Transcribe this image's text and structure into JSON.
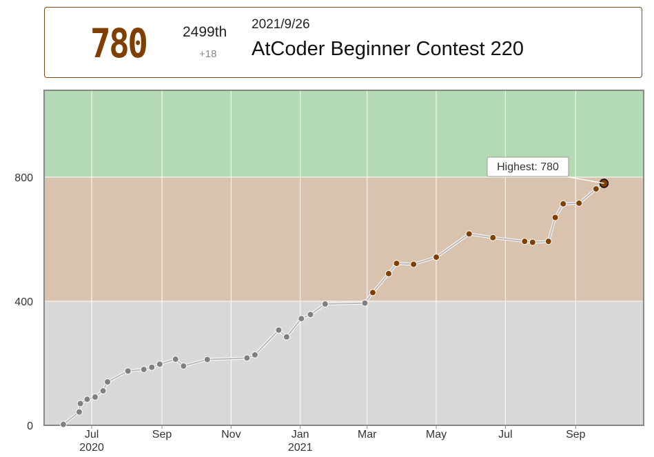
{
  "status": {
    "rating": "780",
    "place": "2499th",
    "diff": "+18",
    "date": "2021/9/26",
    "contest": "AtCoder Beginner Contest 220"
  },
  "colors": {
    "gray_band": "#d8d8d8",
    "brown_band": "#d9c2ae",
    "green_band": "#b4dab4",
    "gray_point": "#808080",
    "brown_point": "#804000",
    "line": "#b8b8b8",
    "frame": "#888888",
    "box_border": "#7a4a14",
    "rating_text": "#7f3f00"
  },
  "chart_data": {
    "type": "line",
    "title": "",
    "xlabel": "",
    "ylabel": "",
    "ylim": [
      0,
      1080
    ],
    "xlim": [
      "2020-05-20",
      "2021-10-31"
    ],
    "grid": true,
    "yticks": [
      "0",
      "400",
      "800"
    ],
    "xticks": [
      {
        "date": "2020-07-01",
        "label": "Jul",
        "year": "2020"
      },
      {
        "date": "2020-09-01",
        "label": "Sep",
        "year": ""
      },
      {
        "date": "2020-11-01",
        "label": "Nov",
        "year": ""
      },
      {
        "date": "2021-01-01",
        "label": "Jan",
        "year": "2021"
      },
      {
        "date": "2021-03-01",
        "label": "Mar",
        "year": ""
      },
      {
        "date": "2021-05-01",
        "label": "May",
        "year": ""
      },
      {
        "date": "2021-07-01",
        "label": "Jul",
        "year": ""
      },
      {
        "date": "2021-09-01",
        "label": "Sep",
        "year": ""
      }
    ],
    "bands": [
      {
        "from": 0,
        "to": 400,
        "color": "#d8d8d8"
      },
      {
        "from": 400,
        "to": 800,
        "color": "#d9c2ae"
      },
      {
        "from": 800,
        "to": 1080,
        "color": "#b4dab4"
      }
    ],
    "annotation": {
      "label": "Highest: 780",
      "date": "2021-09-26",
      "value": 780
    },
    "series": [
      {
        "points": [
          {
            "date": "2020-06-06",
            "value": 3
          },
          {
            "date": "2020-06-20",
            "value": 43
          },
          {
            "date": "2020-06-21",
            "value": 70
          },
          {
            "date": "2020-06-27",
            "value": 84
          },
          {
            "date": "2020-07-04",
            "value": 91
          },
          {
            "date": "2020-07-11",
            "value": 111
          },
          {
            "date": "2020-07-15",
            "value": 140
          },
          {
            "date": "2020-08-02",
            "value": 175
          },
          {
            "date": "2020-08-16",
            "value": 180
          },
          {
            "date": "2020-08-23",
            "value": 187
          },
          {
            "date": "2020-08-30",
            "value": 197
          },
          {
            "date": "2020-09-13",
            "value": 213
          },
          {
            "date": "2020-09-20",
            "value": 191
          },
          {
            "date": "2020-10-11",
            "value": 212
          },
          {
            "date": "2020-11-15",
            "value": 217
          },
          {
            "date": "2020-11-22",
            "value": 227
          },
          {
            "date": "2020-12-13",
            "value": 307
          },
          {
            "date": "2020-12-20",
            "value": 285
          },
          {
            "date": "2021-01-02",
            "value": 344
          },
          {
            "date": "2021-01-10",
            "value": 357
          },
          {
            "date": "2021-01-23",
            "value": 391
          },
          {
            "date": "2021-02-27",
            "value": 394
          },
          {
            "date": "2021-03-06",
            "value": 428
          },
          {
            "date": "2021-03-20",
            "value": 489
          },
          {
            "date": "2021-03-27",
            "value": 522
          },
          {
            "date": "2021-04-11",
            "value": 519
          },
          {
            "date": "2021-05-01",
            "value": 542
          },
          {
            "date": "2021-05-30",
            "value": 617
          },
          {
            "date": "2021-06-20",
            "value": 605
          },
          {
            "date": "2021-07-18",
            "value": 593
          },
          {
            "date": "2021-07-25",
            "value": 590
          },
          {
            "date": "2021-08-08",
            "value": 593
          },
          {
            "date": "2021-08-14",
            "value": 670
          },
          {
            "date": "2021-08-21",
            "value": 714
          },
          {
            "date": "2021-09-04",
            "value": 716
          },
          {
            "date": "2021-09-19",
            "value": 762
          },
          {
            "date": "2021-09-26",
            "value": 780
          }
        ]
      }
    ]
  }
}
